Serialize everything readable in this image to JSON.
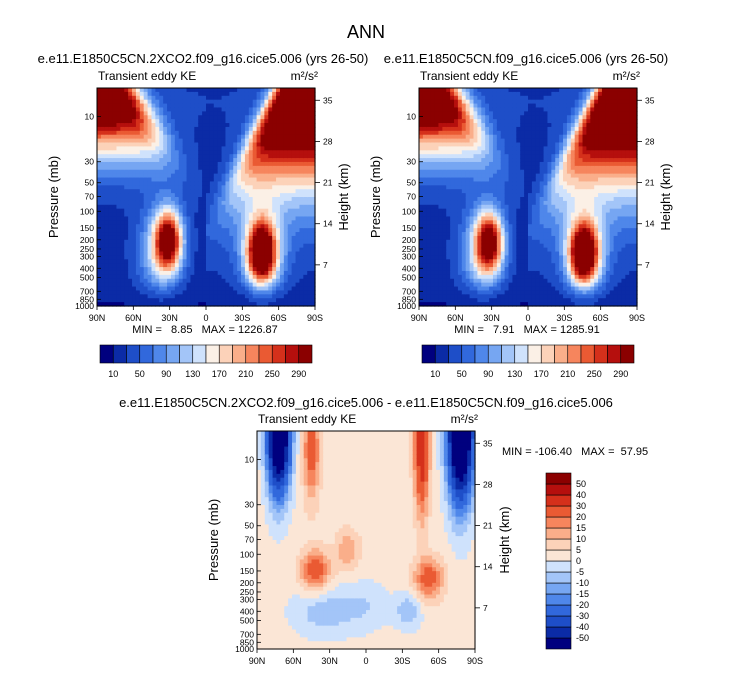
{
  "chart_data": {
    "type": "heatmap",
    "title": "ANN",
    "panels": [
      {
        "id": "p1",
        "title": "e.e11.E1850C5CN.2XCO2.f09_g16.cice5.006 (yrs 26-50)",
        "left_label": "Transient eddy KE",
        "units": "m²/s²",
        "ylabel": "Pressure (mb)",
        "ylabel_right": "Height (km)",
        "xticks": [
          "90N",
          "60N",
          "30N",
          "0",
          "30S",
          "60S",
          "90S"
        ],
        "pressure_ticks": [
          "10",
          "30",
          "50",
          "70",
          "100",
          "150",
          "200",
          "250",
          "300",
          "400",
          "500",
          "700",
          "850",
          "1000"
        ],
        "height_ticks": [
          "35",
          "28",
          "21",
          "14",
          "7"
        ],
        "stats": "MIN =   8.85   MAX = 1226.87",
        "jets": [
          {
            "lat": 31,
            "p": 200,
            "value": 280
          },
          {
            "lat": -46,
            "p": 270,
            "value": 295
          }
        ]
      },
      {
        "id": "p2",
        "title": "e.e11.E1850C5CN.f09_g16.cice5.006 (yrs 26-50)",
        "left_label": "Transient eddy KE",
        "units": "m²/s²",
        "ylabel": "Pressure (mb)",
        "ylabel_right": "Height (km)",
        "xticks": [
          "90N",
          "60N",
          "30N",
          "0",
          "30S",
          "60S",
          "90S"
        ],
        "pressure_ticks": [
          "10",
          "30",
          "50",
          "70",
          "100",
          "150",
          "200",
          "250",
          "300",
          "400",
          "500",
          "700",
          "850",
          "1000"
        ],
        "height_ticks": [
          "35",
          "28",
          "21",
          "14",
          "7"
        ],
        "stats": "MIN =   7.91   MAX = 1285.91",
        "jets": [
          {
            "lat": 32,
            "p": 210,
            "value": 270
          },
          {
            "lat": -46,
            "p": 280,
            "value": 300
          }
        ]
      },
      {
        "id": "p3",
        "title": "e.e11.E1850C5CN.2XCO2.f09_g16.cice5.006 - e.e11.E1850C5CN.f09_g16.cice5.006",
        "left_label": "Transient eddy KE",
        "units": "m²/s²",
        "ylabel": "Pressure (mb)",
        "ylabel_right": "Height (km)",
        "xticks": [
          "90N",
          "60N",
          "30N",
          "0",
          "30S",
          "60S",
          "90S"
        ],
        "pressure_ticks": [
          "10",
          "30",
          "50",
          "70",
          "100",
          "150",
          "200",
          "250",
          "300",
          "400",
          "500",
          "700",
          "850",
          "1000"
        ],
        "height_ticks": [
          "35",
          "28",
          "21",
          "14",
          "7"
        ],
        "stats": "MIN = -106.40   MAX =  57.95"
      }
    ],
    "colorbar_abs": {
      "levels": [
        10,
        30,
        50,
        70,
        90,
        110,
        130,
        150,
        170,
        190,
        210,
        230,
        250,
        270,
        290
      ],
      "labels": [
        "10",
        "50",
        "90",
        "130",
        "170",
        "210",
        "250",
        "290"
      ],
      "colors": [
        "#00007f",
        "#0b2ba6",
        "#1e4ec8",
        "#3168dc",
        "#4f87ea",
        "#76a6f2",
        "#a3c5f8",
        "#cfe2fc",
        "#fbf0e6",
        "#fcd2b9",
        "#faae8a",
        "#f6855d",
        "#ea5a33",
        "#d5301b",
        "#b50f0d",
        "#8b0000"
      ]
    },
    "colorbar_diff": {
      "levels": [
        -50,
        -40,
        -30,
        -20,
        -15,
        -10,
        -5,
        0,
        5,
        10,
        15,
        20,
        30,
        40,
        50
      ],
      "labels": [
        "-50",
        "-40",
        "-30",
        "-20",
        "-15",
        "-10",
        "-5",
        "0",
        "5",
        "10",
        "15",
        "20",
        "30",
        "40",
        "50"
      ],
      "colors": [
        "#00007f",
        "#0b2ba6",
        "#1e4ec8",
        "#3168dc",
        "#4f87ea",
        "#76a6f2",
        "#a3c5f8",
        "#cfe2fc",
        "#fbe6d6",
        "#fcd2b9",
        "#faae8a",
        "#f6855d",
        "#ea5a33",
        "#d5301b",
        "#b50f0d",
        "#8b0000"
      ]
    }
  }
}
